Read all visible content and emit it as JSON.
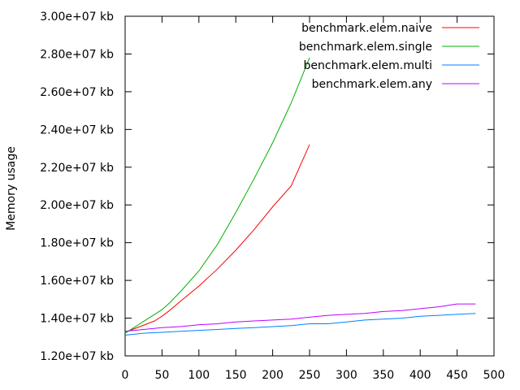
{
  "chart_data": {
    "type": "line",
    "title": "",
    "xlabel": "",
    "ylabel": "Memory usage",
    "xlim": [
      0,
      500
    ],
    "ylim": [
      12000000,
      30000000
    ],
    "x_ticks": [
      0,
      50,
      100,
      150,
      200,
      250,
      300,
      350,
      400,
      450,
      500
    ],
    "y_ticks": [
      12000000,
      14000000,
      16000000,
      18000000,
      20000000,
      22000000,
      24000000,
      26000000,
      28000000,
      30000000
    ],
    "y_tick_labels": [
      "1.20e+07 kb",
      "1.40e+07 kb",
      "1.60e+07 kb",
      "1.80e+07 kb",
      "2.00e+07 kb",
      "2.20e+07 kb",
      "2.40e+07 kb",
      "2.60e+07 kb",
      "2.80e+07 kb",
      "3.00e+07 kb"
    ],
    "grid": false,
    "legend_position": "top-right",
    "series": [
      {
        "name": "benchmark.elem.naive",
        "color": "#ff0000",
        "x": [
          0,
          10,
          20,
          30,
          40,
          50,
          60,
          75,
          100,
          125,
          150,
          175,
          200,
          225,
          250
        ],
        "y": [
          13250000,
          13400000,
          13550000,
          13700000,
          13850000,
          14100000,
          14400000,
          14900000,
          15700000,
          16600000,
          17600000,
          18700000,
          19900000,
          21000000,
          23200000
        ]
      },
      {
        "name": "benchmark.elem.single",
        "color": "#00b000",
        "x": [
          0,
          10,
          20,
          30,
          40,
          50,
          60,
          75,
          100,
          125,
          150,
          175,
          200,
          225,
          250
        ],
        "y": [
          13200000,
          13450000,
          13700000,
          13950000,
          14200000,
          14450000,
          14800000,
          15400000,
          16500000,
          17900000,
          19600000,
          21400000,
          23300000,
          25400000,
          27800000
        ]
      },
      {
        "name": "benchmark.elem.multi",
        "color": "#0080ff",
        "x": [
          0,
          25,
          50,
          75,
          100,
          125,
          150,
          175,
          200,
          225,
          250,
          275,
          300,
          325,
          350,
          375,
          400,
          425,
          450,
          475
        ],
        "y": [
          13100000,
          13200000,
          13250000,
          13300000,
          13350000,
          13400000,
          13450000,
          13500000,
          13550000,
          13600000,
          13700000,
          13700000,
          13800000,
          13900000,
          13950000,
          14000000,
          14100000,
          14150000,
          14200000,
          14250000
        ]
      },
      {
        "name": "benchmark.elem.any",
        "color": "#c000ff",
        "x": [
          0,
          25,
          50,
          75,
          100,
          125,
          150,
          175,
          200,
          225,
          250,
          275,
          300,
          325,
          350,
          375,
          400,
          425,
          450,
          475
        ],
        "y": [
          13300000,
          13400000,
          13500000,
          13550000,
          13650000,
          13700000,
          13800000,
          13850000,
          13900000,
          13950000,
          14050000,
          14150000,
          14200000,
          14250000,
          14350000,
          14400000,
          14500000,
          14600000,
          14750000,
          14750000
        ]
      }
    ]
  }
}
